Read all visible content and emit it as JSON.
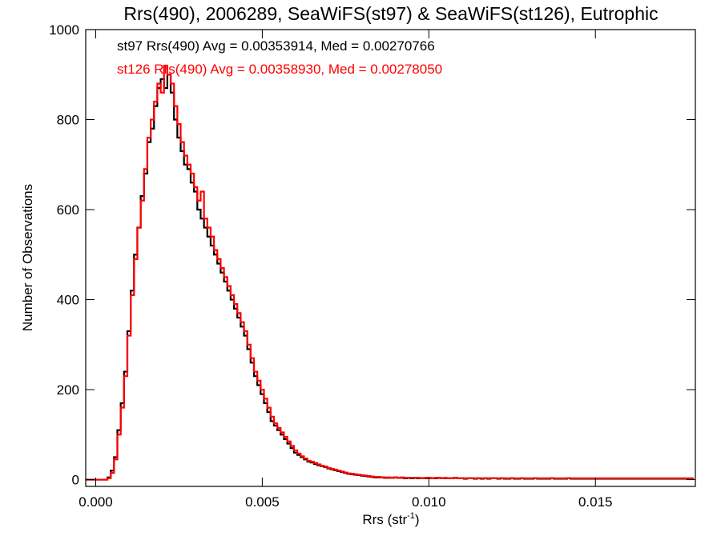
{
  "chart_data": {
    "type": "histogram",
    "title": "Rrs(490), 2006289, SeaWiFS(st97) & SeaWiFS(st126), Eutrophic",
    "xlabel": "Rrs (str",
    "xlabel_sup": "-1",
    "xlabel_end": ")",
    "ylabel": "Number of Observations",
    "xlim": [
      -0.0003,
      0.018
    ],
    "ylim": [
      -15,
      1000
    ],
    "xticks": [
      0.0,
      0.005,
      0.01,
      0.015
    ],
    "xtick_labels": [
      "0.000",
      "0.005",
      "0.010",
      "0.015"
    ],
    "yticks": [
      0,
      200,
      400,
      600,
      800,
      1000
    ],
    "ytick_labels": [
      "0",
      "200",
      "400",
      "600",
      "800",
      "1000"
    ],
    "grid": false,
    "annotations": [
      {
        "text": "st97 Rrs(490) Avg = 0.00353914, Med = 0.00270766",
        "color": "#000000"
      },
      {
        "text": "st126 Rrs(490) Avg = 0.00358930, Med = 0.00278050",
        "color": "#ff0000"
      }
    ],
    "bin_width": 0.0001,
    "series": [
      {
        "color": "#000000",
        "x": [
          0.0,
          0.0001,
          0.0002,
          0.0003,
          0.0004,
          0.0005,
          0.0006,
          0.0007,
          0.0008,
          0.0009,
          0.001,
          0.0011,
          0.0012,
          0.0013,
          0.0014,
          0.0015,
          0.0016,
          0.0017,
          0.0018,
          0.0019,
          0.002,
          0.0021,
          0.0022,
          0.0023,
          0.0024,
          0.0025,
          0.0026,
          0.0027,
          0.0028,
          0.0029,
          0.003,
          0.0031,
          0.0032,
          0.0033,
          0.0034,
          0.0035,
          0.0036,
          0.0037,
          0.0038,
          0.0039,
          0.004,
          0.0041,
          0.0042,
          0.0043,
          0.0044,
          0.0045,
          0.0046,
          0.0047,
          0.0048,
          0.0049,
          0.005,
          0.0051,
          0.0052,
          0.0053,
          0.0054,
          0.0055,
          0.0056,
          0.0057,
          0.0058,
          0.0059,
          0.006,
          0.0061,
          0.0062,
          0.0063,
          0.0064,
          0.0065,
          0.0066,
          0.0067,
          0.0068,
          0.0069,
          0.007,
          0.0071,
          0.0072,
          0.0073,
          0.0074,
          0.0075,
          0.0076,
          0.0077,
          0.0078,
          0.0079,
          0.008,
          0.0081,
          0.0082,
          0.0083,
          0.0084,
          0.0085,
          0.0086,
          0.0087,
          0.0088,
          0.0089,
          0.009,
          0.0091,
          0.0092,
          0.0093,
          0.0094,
          0.0095,
          0.0096,
          0.0097,
          0.0098,
          0.0099,
          0.01,
          0.0101,
          0.0102,
          0.0103,
          0.0104,
          0.0105,
          0.0106,
          0.0107,
          0.0108,
          0.0109,
          0.011,
          0.0111,
          0.0112,
          0.0113,
          0.0114,
          0.0115,
          0.0116,
          0.0117,
          0.0118,
          0.0119,
          0.012,
          0.0121,
          0.0122,
          0.0123,
          0.0124,
          0.0125,
          0.0126,
          0.0127,
          0.0128,
          0.0129,
          0.013,
          0.0131,
          0.0132,
          0.0133,
          0.0134,
          0.0135,
          0.0136,
          0.0137,
          0.0138,
          0.0139,
          0.014,
          0.0141,
          0.0142,
          0.0143,
          0.0144,
          0.0145,
          0.0146,
          0.0147,
          0.0148,
          0.0149,
          0.015,
          0.0151,
          0.0152,
          0.0153,
          0.0154,
          0.0155,
          0.0156,
          0.0157,
          0.0158,
          0.0159,
          0.016,
          0.0161,
          0.0162,
          0.0163,
          0.0164,
          0.0165,
          0.0166,
          0.0167,
          0.0168,
          0.0169,
          0.017,
          0.0171,
          0.0172,
          0.0173,
          0.0174,
          0.0175,
          0.0176,
          0.0177,
          0.0178,
          0.0179
        ],
        "values": [
          0,
          0,
          0,
          0,
          5,
          20,
          50,
          110,
          170,
          240,
          330,
          420,
          500,
          560,
          630,
          680,
          750,
          780,
          830,
          870,
          890,
          870,
          900,
          860,
          800,
          760,
          730,
          700,
          690,
          660,
          640,
          600,
          580,
          560,
          540,
          520,
          500,
          480,
          460,
          440,
          420,
          400,
          380,
          360,
          340,
          320,
          290,
          260,
          230,
          210,
          190,
          170,
          150,
          130,
          120,
          110,
          100,
          90,
          80,
          70,
          60,
          55,
          50,
          45,
          40,
          38,
          35,
          32,
          30,
          28,
          25,
          23,
          21,
          19,
          17,
          15,
          13,
          12,
          11,
          10,
          9,
          8,
          7,
          6,
          5,
          5,
          5,
          4,
          4,
          4,
          5,
          4,
          4,
          3,
          4,
          3,
          4,
          3,
          3,
          3,
          4,
          3,
          3,
          4,
          3,
          3,
          3,
          3,
          4,
          3,
          3,
          2,
          3,
          3,
          2,
          3,
          2,
          3,
          2,
          3,
          3,
          2,
          3,
          2,
          2,
          3,
          2,
          2,
          3,
          2,
          2,
          2,
          3,
          2,
          2,
          2,
          2,
          3,
          2,
          2,
          2,
          2,
          3,
          2,
          2,
          2,
          2,
          2,
          2,
          2,
          2,
          2,
          2,
          2,
          2,
          2,
          2,
          2,
          2,
          2,
          2,
          2,
          2,
          2,
          2,
          2,
          2,
          2,
          2,
          2,
          2,
          2,
          2,
          2,
          2,
          2,
          2,
          2,
          2,
          2
        ]
      },
      {
        "color": "#ff0000",
        "x": [
          0.0,
          0.0001,
          0.0002,
          0.0003,
          0.0004,
          0.0005,
          0.0006,
          0.0007,
          0.0008,
          0.0009,
          0.001,
          0.0011,
          0.0012,
          0.0013,
          0.0014,
          0.0015,
          0.0016,
          0.0017,
          0.0018,
          0.0019,
          0.002,
          0.0021,
          0.0022,
          0.0023,
          0.0024,
          0.0025,
          0.0026,
          0.0027,
          0.0028,
          0.0029,
          0.003,
          0.0031,
          0.0032,
          0.0033,
          0.0034,
          0.0035,
          0.0036,
          0.0037,
          0.0038,
          0.0039,
          0.004,
          0.0041,
          0.0042,
          0.0043,
          0.0044,
          0.0045,
          0.0046,
          0.0047,
          0.0048,
          0.0049,
          0.005,
          0.0051,
          0.0052,
          0.0053,
          0.0054,
          0.0055,
          0.0056,
          0.0057,
          0.0058,
          0.0059,
          0.006,
          0.0061,
          0.0062,
          0.0063,
          0.0064,
          0.0065,
          0.0066,
          0.0067,
          0.0068,
          0.0069,
          0.007,
          0.0071,
          0.0072,
          0.0073,
          0.0074,
          0.0075,
          0.0076,
          0.0077,
          0.0078,
          0.0079,
          0.008,
          0.0081,
          0.0082,
          0.0083,
          0.0084,
          0.0085,
          0.0086,
          0.0087,
          0.0088,
          0.0089,
          0.009,
          0.0091,
          0.0092,
          0.0093,
          0.0094,
          0.0095,
          0.0096,
          0.0097,
          0.0098,
          0.0099,
          0.01,
          0.0101,
          0.0102,
          0.0103,
          0.0104,
          0.0105,
          0.0106,
          0.0107,
          0.0108,
          0.0109,
          0.011,
          0.0111,
          0.0112,
          0.0113,
          0.0114,
          0.0115,
          0.0116,
          0.0117,
          0.0118,
          0.0119,
          0.012,
          0.0121,
          0.0122,
          0.0123,
          0.0124,
          0.0125,
          0.0126,
          0.0127,
          0.0128,
          0.0129,
          0.013,
          0.0131,
          0.0132,
          0.0133,
          0.0134,
          0.0135,
          0.0136,
          0.0137,
          0.0138,
          0.0139,
          0.014,
          0.0141,
          0.0142,
          0.0143,
          0.0144,
          0.0145,
          0.0146,
          0.0147,
          0.0148,
          0.0149,
          0.015,
          0.0151,
          0.0152,
          0.0153,
          0.0154,
          0.0155,
          0.0156,
          0.0157,
          0.0158,
          0.0159,
          0.016,
          0.0161,
          0.0162,
          0.0163,
          0.0164,
          0.0165,
          0.0166,
          0.0167,
          0.0168,
          0.0169,
          0.017,
          0.0171,
          0.0172,
          0.0173,
          0.0174,
          0.0175,
          0.0176,
          0.0177,
          0.0178,
          0.0179
        ],
        "values": [
          0,
          0,
          0,
          0,
          3,
          15,
          45,
          100,
          160,
          230,
          320,
          410,
          490,
          560,
          620,
          690,
          760,
          800,
          840,
          880,
          860,
          920,
          900,
          880,
          830,
          790,
          750,
          720,
          700,
          680,
          650,
          620,
          640,
          580,
          560,
          540,
          510,
          490,
          470,
          450,
          430,
          410,
          390,
          370,
          350,
          330,
          300,
          270,
          240,
          220,
          200,
          180,
          160,
          140,
          125,
          115,
          105,
          95,
          85,
          75,
          65,
          58,
          52,
          47,
          42,
          40,
          37,
          34,
          31,
          29,
          26,
          24,
          22,
          20,
          18,
          16,
          14,
          13,
          12,
          11,
          10,
          9,
          8,
          7,
          6,
          6,
          5,
          5,
          5,
          4,
          5,
          4,
          5,
          4,
          4,
          4,
          4,
          4,
          3,
          4,
          4,
          3,
          4,
          4,
          3,
          4,
          3,
          3,
          4,
          3,
          3,
          3,
          3,
          3,
          3,
          3,
          3,
          3,
          3,
          3,
          3,
          3,
          3,
          3,
          3,
          3,
          3,
          3,
          3,
          3,
          3,
          3,
          3,
          3,
          3,
          3,
          3,
          3,
          3,
          3,
          3,
          3,
          3,
          3,
          3,
          3,
          3,
          3,
          3,
          3,
          3,
          3,
          3,
          3,
          3,
          3,
          3,
          3,
          3,
          3,
          3,
          3,
          3,
          3,
          3,
          3,
          3,
          3,
          3,
          3,
          3,
          3,
          3,
          3,
          3,
          3,
          3,
          3,
          3,
          3
        ]
      }
    ]
  }
}
